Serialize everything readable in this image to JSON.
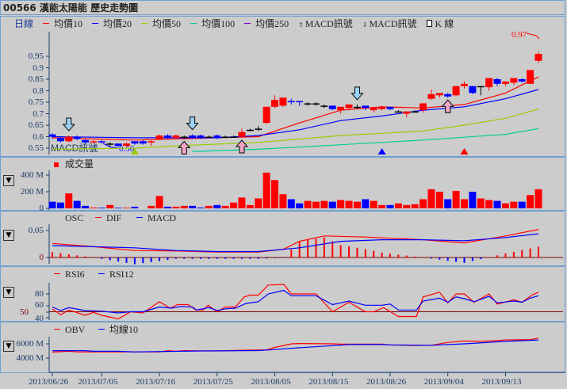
{
  "title": "00566 漢能太陽能  歷史走勢圖",
  "legend": {
    "period": "日線",
    "items": [
      {
        "label": "均價10",
        "color": "#ff0000"
      },
      {
        "label": "均價20",
        "color": "#0000ff"
      },
      {
        "label": "均價50",
        "color": "#99cc00"
      },
      {
        "label": "均價100",
        "color": "#00cc99"
      },
      {
        "label": "均價250",
        "color": "#6600cc"
      }
    ],
    "macd_buy": "MACD訊號",
    "macd_sell": "MACD訊號",
    "kline": "K 線"
  },
  "annotations": {
    "high_label": "0.97",
    "low_label": "0.56",
    "macd_signal_label": "MACD訊號"
  },
  "colors": {
    "up": "#ff0000",
    "down": "#0000ff",
    "doji": "#000000"
  },
  "chart_data": [
    {
      "type": "candlestick",
      "name": "price",
      "y_ticks": [
        "0.95",
        "0.9",
        "0.85",
        "0.8",
        "0.75",
        "0.7",
        "0.65",
        "0.6",
        "0.55"
      ],
      "ylim": [
        0.54,
        0.98
      ],
      "ohlc": [
        [
          0.61,
          0.6,
          0.615,
          0.59
        ],
        [
          0.595,
          0.58,
          0.6,
          0.575
        ],
        [
          0.58,
          0.6,
          0.605,
          0.575
        ],
        [
          0.6,
          0.59,
          0.605,
          0.585
        ],
        [
          0.585,
          0.575,
          0.59,
          0.57
        ],
        [
          0.575,
          0.58,
          0.585,
          0.57
        ],
        [
          0.58,
          0.575,
          0.585,
          0.57
        ],
        [
          0.57,
          0.57,
          0.575,
          0.555
        ],
        [
          0.57,
          0.56,
          0.57,
          0.555
        ],
        [
          0.56,
          0.57,
          0.575,
          0.555
        ],
        [
          0.58,
          0.57,
          0.58,
          0.565
        ],
        [
          0.58,
          0.57,
          0.585,
          0.565
        ],
        [
          0.575,
          0.58,
          0.585,
          0.56
        ],
        [
          0.59,
          0.605,
          0.61,
          0.59
        ],
        [
          0.605,
          0.595,
          0.61,
          0.59
        ],
        [
          0.595,
          0.605,
          0.61,
          0.59
        ],
        [
          0.6,
          0.6,
          0.605,
          0.59
        ],
        [
          0.605,
          0.595,
          0.61,
          0.59
        ],
        [
          0.605,
          0.595,
          0.61,
          0.59
        ],
        [
          0.6,
          0.6,
          0.605,
          0.595
        ],
        [
          0.605,
          0.595,
          0.61,
          0.59
        ],
        [
          0.6,
          0.6,
          0.605,
          0.595
        ],
        [
          0.6,
          0.6,
          0.605,
          0.595
        ],
        [
          0.6,
          0.62,
          0.635,
          0.595
        ],
        [
          0.63,
          0.63,
          0.635,
          0.625
        ],
        [
          0.635,
          0.635,
          0.645,
          0.625
        ],
        [
          0.66,
          0.73,
          0.73,
          0.655
        ],
        [
          0.73,
          0.76,
          0.78,
          0.725
        ],
        [
          0.735,
          0.77,
          0.77,
          0.73
        ],
        [
          0.755,
          0.75,
          0.765,
          0.74
        ],
        [
          0.755,
          0.75,
          0.755,
          0.735
        ],
        [
          0.745,
          0.745,
          0.75,
          0.735
        ],
        [
          0.745,
          0.745,
          0.75,
          0.735
        ],
        [
          0.735,
          0.735,
          0.74,
          0.725
        ],
        [
          0.735,
          0.72,
          0.735,
          0.715
        ],
        [
          0.715,
          0.73,
          0.73,
          0.7
        ],
        [
          0.725,
          0.74,
          0.74,
          0.715
        ],
        [
          0.73,
          0.73,
          0.74,
          0.72
        ],
        [
          0.735,
          0.725,
          0.735,
          0.715
        ],
        [
          0.715,
          0.725,
          0.73,
          0.705
        ],
        [
          0.72,
          0.73,
          0.735,
          0.715
        ],
        [
          0.73,
          0.72,
          0.73,
          0.715
        ],
        [
          0.71,
          0.71,
          0.715,
          0.705
        ],
        [
          0.7,
          0.71,
          0.71,
          0.685
        ],
        [
          0.71,
          0.71,
          0.715,
          0.705
        ],
        [
          0.715,
          0.745,
          0.745,
          0.705
        ],
        [
          0.765,
          0.785,
          0.805,
          0.76
        ],
        [
          0.78,
          0.79,
          0.79,
          0.77
        ],
        [
          0.785,
          0.775,
          0.79,
          0.77
        ],
        [
          0.78,
          0.82,
          0.82,
          0.775
        ],
        [
          0.82,
          0.83,
          0.84,
          0.81
        ],
        [
          0.82,
          0.79,
          0.82,
          0.785
        ],
        [
          0.82,
          0.82,
          0.82,
          0.78
        ],
        [
          0.815,
          0.855,
          0.855,
          0.8
        ],
        [
          0.85,
          0.83,
          0.855,
          0.82
        ],
        [
          0.83,
          0.84,
          0.84,
          0.82
        ],
        [
          0.835,
          0.855,
          0.855,
          0.825
        ],
        [
          0.85,
          0.84,
          0.855,
          0.835
        ],
        [
          0.83,
          0.89,
          0.89,
          0.83
        ],
        [
          0.93,
          0.96,
          0.97,
          0.92
        ]
      ],
      "ma": [
        {
          "name": "均價10",
          "color": "#ff0000",
          "points": [
            [
              0,
              0.595
            ],
            [
              10,
              0.585
            ],
            [
              20,
              0.595
            ],
            [
              25,
              0.6
            ],
            [
              30,
              0.66
            ],
            [
              35,
              0.715
            ],
            [
              40,
              0.73
            ],
            [
              45,
              0.725
            ],
            [
              50,
              0.74
            ],
            [
              55,
              0.79
            ],
            [
              59,
              0.86
            ]
          ]
        },
        {
          "name": "均價20",
          "color": "#0000ff",
          "points": [
            [
              0,
              0.6
            ],
            [
              10,
              0.595
            ],
            [
              20,
              0.595
            ],
            [
              25,
              0.605
            ],
            [
              30,
              0.63
            ],
            [
              35,
              0.67
            ],
            [
              40,
              0.69
            ],
            [
              45,
              0.715
            ],
            [
              50,
              0.73
            ],
            [
              55,
              0.765
            ],
            [
              59,
              0.805
            ]
          ]
        },
        {
          "name": "均價50",
          "color": "#99cc00",
          "points": [
            [
              0,
              0.545
            ],
            [
              10,
              0.55
            ],
            [
              15,
              0.56
            ],
            [
              25,
              0.575
            ],
            [
              35,
              0.605
            ],
            [
              45,
              0.625
            ],
            [
              50,
              0.65
            ],
            [
              55,
              0.68
            ],
            [
              59,
              0.72
            ]
          ]
        },
        {
          "name": "均價100",
          "color": "#00cc99",
          "points": [
            [
              17,
              0.535
            ],
            [
              25,
              0.545
            ],
            [
              35,
              0.565
            ],
            [
              45,
              0.585
            ],
            [
              55,
              0.61
            ],
            [
              59,
              0.635
            ]
          ]
        }
      ],
      "sell_signals": [
        2,
        17,
        37
      ],
      "buy_signals": [
        16,
        23,
        48
      ],
      "triangles": [
        {
          "i": 10,
          "color": "#99cc00"
        },
        {
          "i": 40,
          "color": "#0000ff"
        },
        {
          "i": 50,
          "color": "#ff0000"
        }
      ]
    },
    {
      "type": "bar",
      "name": "volume",
      "legend": "成交量",
      "y_ticks": [
        "400 M",
        "200 M",
        "0"
      ],
      "unit": "M",
      "values": [
        80,
        70,
        180,
        90,
        30,
        10,
        8,
        40,
        8,
        8,
        20,
        0,
        30,
        150,
        20,
        20,
        30,
        30,
        10,
        30,
        40,
        30,
        70,
        130,
        40,
        120,
        430,
        340,
        170,
        110,
        60,
        90,
        80,
        90,
        80,
        100,
        90,
        80,
        110,
        90,
        40,
        40,
        60,
        40,
        50,
        110,
        230,
        200,
        110,
        210,
        110,
        200,
        120,
        100,
        90,
        60,
        80,
        80,
        160,
        230
      ]
    },
    {
      "type": "line",
      "name": "macd",
      "legend": [
        "OSC",
        "DIF",
        "MACD"
      ],
      "y_ticks": [
        "0.05",
        "0"
      ],
      "dif": [
        [
          0,
          0.026
        ],
        [
          5,
          0.02
        ],
        [
          10,
          0.013
        ],
        [
          15,
          0.012
        ],
        [
          20,
          0.01
        ],
        [
          25,
          0.01
        ],
        [
          28,
          0.015
        ],
        [
          30,
          0.03
        ],
        [
          33,
          0.04
        ],
        [
          38,
          0.038
        ],
        [
          45,
          0.033
        ],
        [
          50,
          0.027
        ],
        [
          55,
          0.04
        ],
        [
          59,
          0.052
        ]
      ],
      "macd": [
        [
          0,
          0.022
        ],
        [
          10,
          0.018
        ],
        [
          15,
          0.013
        ],
        [
          20,
          0.011
        ],
        [
          25,
          0.011
        ],
        [
          30,
          0.018
        ],
        [
          35,
          0.03
        ],
        [
          40,
          0.033
        ],
        [
          45,
          0.033
        ],
        [
          50,
          0.031
        ],
        [
          55,
          0.037
        ],
        [
          59,
          0.044
        ]
      ]
    },
    {
      "type": "line",
      "name": "rsi",
      "legend": [
        "RSI6",
        "RSI12"
      ],
      "y_ticks": [
        "80",
        "60",
        "50",
        "40"
      ],
      "rsi6": [
        [
          0,
          55
        ],
        [
          1,
          45
        ],
        [
          2,
          53
        ],
        [
          4,
          44
        ],
        [
          5,
          49
        ],
        [
          6,
          44
        ],
        [
          8,
          38
        ],
        [
          9.5,
          50
        ],
        [
          11,
          48
        ],
        [
          13,
          67
        ],
        [
          14.3,
          56
        ],
        [
          15.2,
          62
        ],
        [
          16.5,
          62
        ],
        [
          17.4,
          53
        ],
        [
          18.3,
          53
        ],
        [
          18.9,
          61
        ],
        [
          20,
          50
        ],
        [
          21,
          58
        ],
        [
          22.2,
          58
        ],
        [
          23.3,
          75
        ],
        [
          24,
          78
        ],
        [
          25,
          78
        ],
        [
          26.2,
          95
        ],
        [
          28.1,
          96
        ],
        [
          29,
          80
        ],
        [
          32,
          80
        ],
        [
          34,
          50
        ],
        [
          36,
          66
        ],
        [
          38,
          50
        ],
        [
          39,
          50
        ],
        [
          40.2,
          57
        ],
        [
          42,
          42
        ],
        [
          44.2,
          42
        ],
        [
          45,
          75
        ],
        [
          47,
          83
        ],
        [
          48,
          65
        ],
        [
          49,
          80
        ],
        [
          50,
          80
        ],
        [
          51.2,
          66
        ],
        [
          53,
          80
        ],
        [
          54,
          63
        ],
        [
          56,
          70
        ],
        [
          57,
          66
        ],
        [
          58.2,
          78
        ],
        [
          59,
          83
        ]
      ],
      "rsi12": [
        [
          0,
          58
        ],
        [
          1,
          52
        ],
        [
          2,
          57
        ],
        [
          4,
          52
        ],
        [
          6,
          51
        ],
        [
          8,
          48
        ],
        [
          9.5,
          50
        ],
        [
          11,
          50
        ],
        [
          13,
          58
        ],
        [
          14.5,
          56
        ],
        [
          15.5,
          59
        ],
        [
          17,
          58
        ],
        [
          17.5,
          53
        ],
        [
          19,
          57
        ],
        [
          20,
          52
        ],
        [
          21,
          55
        ],
        [
          22.2,
          56
        ],
        [
          23.5,
          64
        ],
        [
          25,
          67
        ],
        [
          26.2,
          80
        ],
        [
          28.1,
          86
        ],
        [
          29,
          77
        ],
        [
          32,
          77
        ],
        [
          34,
          62
        ],
        [
          36,
          68
        ],
        [
          38,
          61
        ],
        [
          40,
          61
        ],
        [
          41,
          63
        ],
        [
          42,
          53
        ],
        [
          44.2,
          53
        ],
        [
          45,
          68
        ],
        [
          47,
          73
        ],
        [
          48,
          66
        ],
        [
          49,
          75
        ],
        [
          50,
          72
        ],
        [
          51.2,
          67
        ],
        [
          53,
          76
        ],
        [
          54,
          65
        ],
        [
          56,
          68
        ],
        [
          57,
          66
        ],
        [
          58,
          73
        ],
        [
          59,
          77
        ]
      ]
    },
    {
      "type": "line",
      "name": "obv",
      "legend": [
        "OBV",
        "均線10"
      ],
      "y_ticks": [
        "6000 M",
        "4000 M"
      ],
      "obv": [
        [
          0,
          4850
        ],
        [
          2,
          4950
        ],
        [
          3,
          4870
        ],
        [
          13,
          4870
        ],
        [
          14,
          5050
        ],
        [
          15,
          4970
        ],
        [
          16,
          5050
        ],
        [
          20,
          5000
        ],
        [
          23,
          5100
        ],
        [
          26,
          5150
        ],
        [
          27,
          5500
        ],
        [
          29,
          6000
        ],
        [
          30,
          6050
        ],
        [
          34,
          6000
        ],
        [
          35,
          5960
        ],
        [
          40,
          5960
        ],
        [
          41,
          5850
        ],
        [
          44,
          5780
        ],
        [
          46,
          5800
        ],
        [
          48,
          6200
        ],
        [
          50,
          6400
        ],
        [
          52,
          6350
        ],
        [
          54,
          6450
        ],
        [
          55,
          6550
        ],
        [
          58,
          6600
        ],
        [
          59,
          6800
        ]
      ],
      "avg10": [
        [
          0,
          5050
        ],
        [
          4,
          5050
        ],
        [
          5,
          4950
        ],
        [
          8,
          4950
        ],
        [
          10,
          4870
        ],
        [
          18,
          5000
        ],
        [
          25,
          5060
        ],
        [
          27,
          5200
        ],
        [
          30,
          5450
        ],
        [
          34,
          5750
        ],
        [
          36,
          5900
        ],
        [
          40,
          5900
        ],
        [
          41,
          5850
        ],
        [
          46,
          5800
        ],
        [
          50,
          6000
        ],
        [
          55,
          6350
        ],
        [
          59,
          6550
        ]
      ]
    }
  ],
  "x_axis": {
    "labels": [
      "2013/06/26",
      "2013/07/05",
      "2013/07/16",
      "2013/07/25",
      "2013/08/05",
      "2013/08/15",
      "2013/08/26",
      "2013/09/04",
      "2013/09/13"
    ],
    "label_index": [
      0,
      6,
      13,
      20,
      27,
      34,
      41,
      48,
      55
    ]
  },
  "dropdown": "▼"
}
